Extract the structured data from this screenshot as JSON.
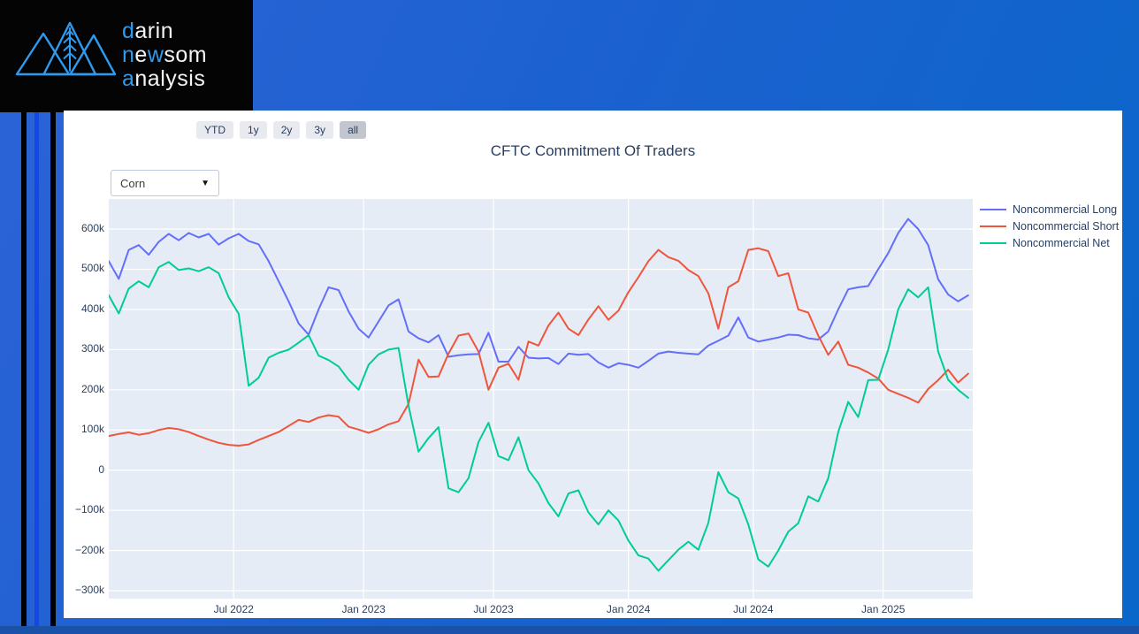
{
  "brand": {
    "icon": "mountains-wheat-icon",
    "accent_color": "#2E9BF0",
    "text_color": "#F5F5F5",
    "lines": [
      {
        "segments": [
          {
            "t": "d",
            "c": "accent"
          },
          {
            "t": "arin",
            "c": "plain"
          }
        ]
      },
      {
        "segments": [
          {
            "t": "n",
            "c": "accent"
          },
          {
            "t": "e",
            "c": "plain"
          },
          {
            "t": "w",
            "c": "accent"
          },
          {
            "t": "som",
            "c": "plain"
          }
        ]
      },
      {
        "segments": [
          {
            "t": "a",
            "c": "accent"
          },
          {
            "t": "nalysis",
            "c": "plain"
          }
        ]
      }
    ]
  },
  "range_selector": {
    "buttons": [
      {
        "label": "YTD",
        "active": false
      },
      {
        "label": "1y",
        "active": false
      },
      {
        "label": "2y",
        "active": false
      },
      {
        "label": "3y",
        "active": false
      },
      {
        "label": "all",
        "active": true
      }
    ]
  },
  "commodity_select": {
    "value": "Corn"
  },
  "colors": {
    "page_background_left": "#2c63d6",
    "page_background_right": "#0967c9",
    "footer_bar": "#1a52a8",
    "stripe_bright_blue": "#1745E8",
    "logo_background": "#040404",
    "card_background": "#ffffff",
    "plot_background": "#E5ECF6",
    "axis_text": "#2a3f5f"
  },
  "chart_data": {
    "type": "line",
    "title": "CFTC Commitment Of Traders",
    "xlabel": "",
    "ylabel": "",
    "unit": "contracts (values in thousands)",
    "x_start": "2022-01-08",
    "x_step_weeks": 2,
    "ylim": [
      -300,
      600
    ],
    "grid": true,
    "legend_position": "right",
    "yticks": [
      {
        "label": "600k",
        "value": 600
      },
      {
        "label": "500k",
        "value": 500
      },
      {
        "label": "400k",
        "value": 400
      },
      {
        "label": "300k",
        "value": 300
      },
      {
        "label": "200k",
        "value": 200
      },
      {
        "label": "100k",
        "value": 100
      },
      {
        "label": "0",
        "value": 0
      },
      {
        "label": "−100k",
        "value": -100
      },
      {
        "label": "−200k",
        "value": -200
      },
      {
        "label": "−300k",
        "value": -300
      }
    ],
    "xticks": [
      {
        "label": "Jul 2022",
        "week": 25
      },
      {
        "label": "Jan 2023",
        "week": 51
      },
      {
        "label": "Jul 2023",
        "week": 77
      },
      {
        "label": "Jan 2024",
        "week": 104
      },
      {
        "label": "Jul 2024",
        "week": 129
      },
      {
        "label": "Jan 2025",
        "week": 155
      }
    ],
    "series": [
      {
        "name": "Noncommercial Long",
        "color": "#636EFA",
        "values": [
          520,
          476,
          548,
          560,
          536,
          568,
          588,
          572,
          590,
          579,
          588,
          561,
          577,
          588,
          570,
          562,
          520,
          470,
          420,
          365,
          337,
          400,
          455,
          448,
          395,
          352,
          330,
          370,
          410,
          425,
          345,
          328,
          318,
          336,
          282,
          286,
          288,
          289,
          342,
          270,
          270,
          307,
          280,
          278,
          279,
          264,
          290,
          287,
          289,
          268,
          255,
          266,
          262,
          255,
          272,
          290,
          295,
          292,
          290,
          288,
          310,
          322,
          335,
          380,
          330,
          320,
          325,
          330,
          337,
          336,
          328,
          325,
          345,
          400,
          450,
          455,
          458,
          500,
          540,
          590,
          625,
          600,
          560,
          475,
          437,
          420,
          435
        ]
      },
      {
        "name": "Noncommercial Short",
        "color": "#EF553B",
        "values": [
          85,
          90,
          94,
          88,
          92,
          100,
          105,
          102,
          95,
          85,
          76,
          68,
          63,
          61,
          64,
          75,
          85,
          95,
          110,
          125,
          120,
          131,
          137,
          133,
          108,
          101,
          93,
          102,
          114,
          122,
          165,
          275,
          232,
          233,
          290,
          335,
          340,
          295,
          200,
          255,
          265,
          225,
          320,
          310,
          360,
          392,
          352,
          336,
          375,
          408,
          374,
          397,
          443,
          480,
          520,
          548,
          530,
          521,
          498,
          483,
          440,
          352,
          455,
          470,
          548,
          552,
          545,
          483,
          490,
          400,
          392,
          335,
          287,
          320,
          262,
          255,
          243,
          228,
          200,
          190,
          180,
          168,
          202,
          224,
          250,
          218,
          240
        ]
      },
      {
        "name": "Noncommercial Net",
        "color": "#00CC96",
        "values": [
          435,
          390,
          452,
          470,
          455,
          505,
          518,
          498,
          502,
          495,
          505,
          490,
          430,
          389,
          210,
          230,
          280,
          292,
          300,
          317,
          336,
          285,
          274,
          258,
          225,
          200,
          262,
          288,
          300,
          304,
          160,
          46,
          80,
          107,
          -45,
          -55,
          -20,
          70,
          118,
          35,
          25,
          82,
          0,
          -33,
          -82,
          -115,
          -58,
          -50,
          -105,
          -135,
          -100,
          -125,
          -175,
          -212,
          -220,
          -250,
          -224,
          -198,
          -178,
          -198,
          -131,
          -5,
          -55,
          -70,
          -135,
          -222,
          -240,
          -200,
          -153,
          -132,
          -65,
          -78,
          -20,
          95,
          170,
          132,
          224,
          225,
          300,
          400,
          450,
          430,
          455,
          295,
          225,
          200,
          180
        ]
      }
    ]
  }
}
